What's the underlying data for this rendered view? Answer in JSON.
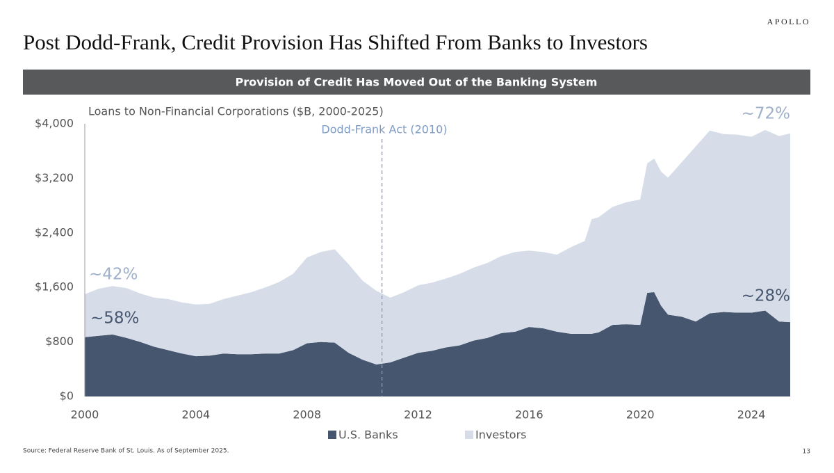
{
  "header": {
    "logo": "APOLLO",
    "title": "Post Dodd-Frank, Credit Provision Has Shifted From Banks to Investors",
    "banner": "Provision of Credit Has Moved Out of the Banking System"
  },
  "chart_data": {
    "type": "stacked-area",
    "subtitle": "Loans to Non-Financial Corporations ($B, 2000-2025)",
    "x": [
      2000,
      2000.5,
      2001,
      2001.5,
      2002,
      2002.5,
      2003,
      2003.5,
      2004,
      2004.5,
      2005,
      2005.5,
      2006,
      2006.5,
      2007,
      2007.5,
      2008,
      2008.5,
      2009,
      2009.5,
      2010,
      2010.5,
      2011,
      2011.5,
      2012,
      2012.5,
      2013,
      2013.5,
      2014,
      2014.5,
      2015,
      2015.5,
      2016,
      2016.5,
      2017,
      2017.5,
      2018,
      2018.25,
      2018.5,
      2019,
      2019.5,
      2020,
      2020.25,
      2020.5,
      2020.75,
      2021,
      2021.5,
      2022,
      2022.5,
      2023,
      2023.5,
      2024,
      2024.5,
      2025,
      2025.4
    ],
    "series": [
      {
        "name": "U.S. Banks",
        "color": "#46566f",
        "values": [
          870,
          890,
          910,
          860,
          800,
          730,
          680,
          630,
          590,
          600,
          630,
          620,
          620,
          630,
          630,
          680,
          780,
          800,
          790,
          640,
          540,
          470,
          500,
          570,
          640,
          670,
          720,
          750,
          820,
          860,
          930,
          950,
          1020,
          1000,
          950,
          920,
          920,
          920,
          940,
          1050,
          1060,
          1050,
          1520,
          1530,
          1330,
          1200,
          1170,
          1100,
          1220,
          1240,
          1230,
          1230,
          1260,
          1100,
          1090
        ]
      },
      {
        "name": "Investors",
        "color": "#d6dde8",
        "values": [
          630,
          690,
          710,
          730,
          710,
          720,
          750,
          750,
          760,
          760,
          800,
          860,
          910,
          970,
          1050,
          1120,
          1260,
          1320,
          1370,
          1300,
          1160,
          1080,
          950,
          960,
          990,
          1000,
          1010,
          1050,
          1070,
          1100,
          1130,
          1170,
          1120,
          1120,
          1130,
          1270,
          1360,
          1680,
          1690,
          1730,
          1790,
          1840,
          1900,
          1960,
          1970,
          2010,
          2270,
          2570,
          2680,
          2610,
          2610,
          2580,
          2650,
          2720,
          2770
        ]
      }
    ],
    "xlim": [
      2000,
      2025.5
    ],
    "xticks": [
      2000,
      2004,
      2008,
      2012,
      2016,
      2020,
      2024
    ],
    "ylim": [
      0,
      4000
    ],
    "yticks": [
      {
        "value": 0,
        "label": "$0"
      },
      {
        "value": 800,
        "label": "$800"
      },
      {
        "value": 1600,
        "label": "$1,600"
      },
      {
        "value": 2400,
        "label": "$2,400"
      },
      {
        "value": 3200,
        "label": "$3,200"
      },
      {
        "value": 4000,
        "label": "$4,000"
      }
    ],
    "event_line": {
      "label": "Dodd-Frank Act (2010)",
      "x": 2010.7,
      "color": "#7f9cc4"
    },
    "share_labels": [
      "~42%",
      "~58%",
      "~72%",
      "~28%"
    ]
  },
  "footer": {
    "source": "Source: Federal Reserve Bank of St. Louis. As of September 2025.",
    "page": "13"
  }
}
